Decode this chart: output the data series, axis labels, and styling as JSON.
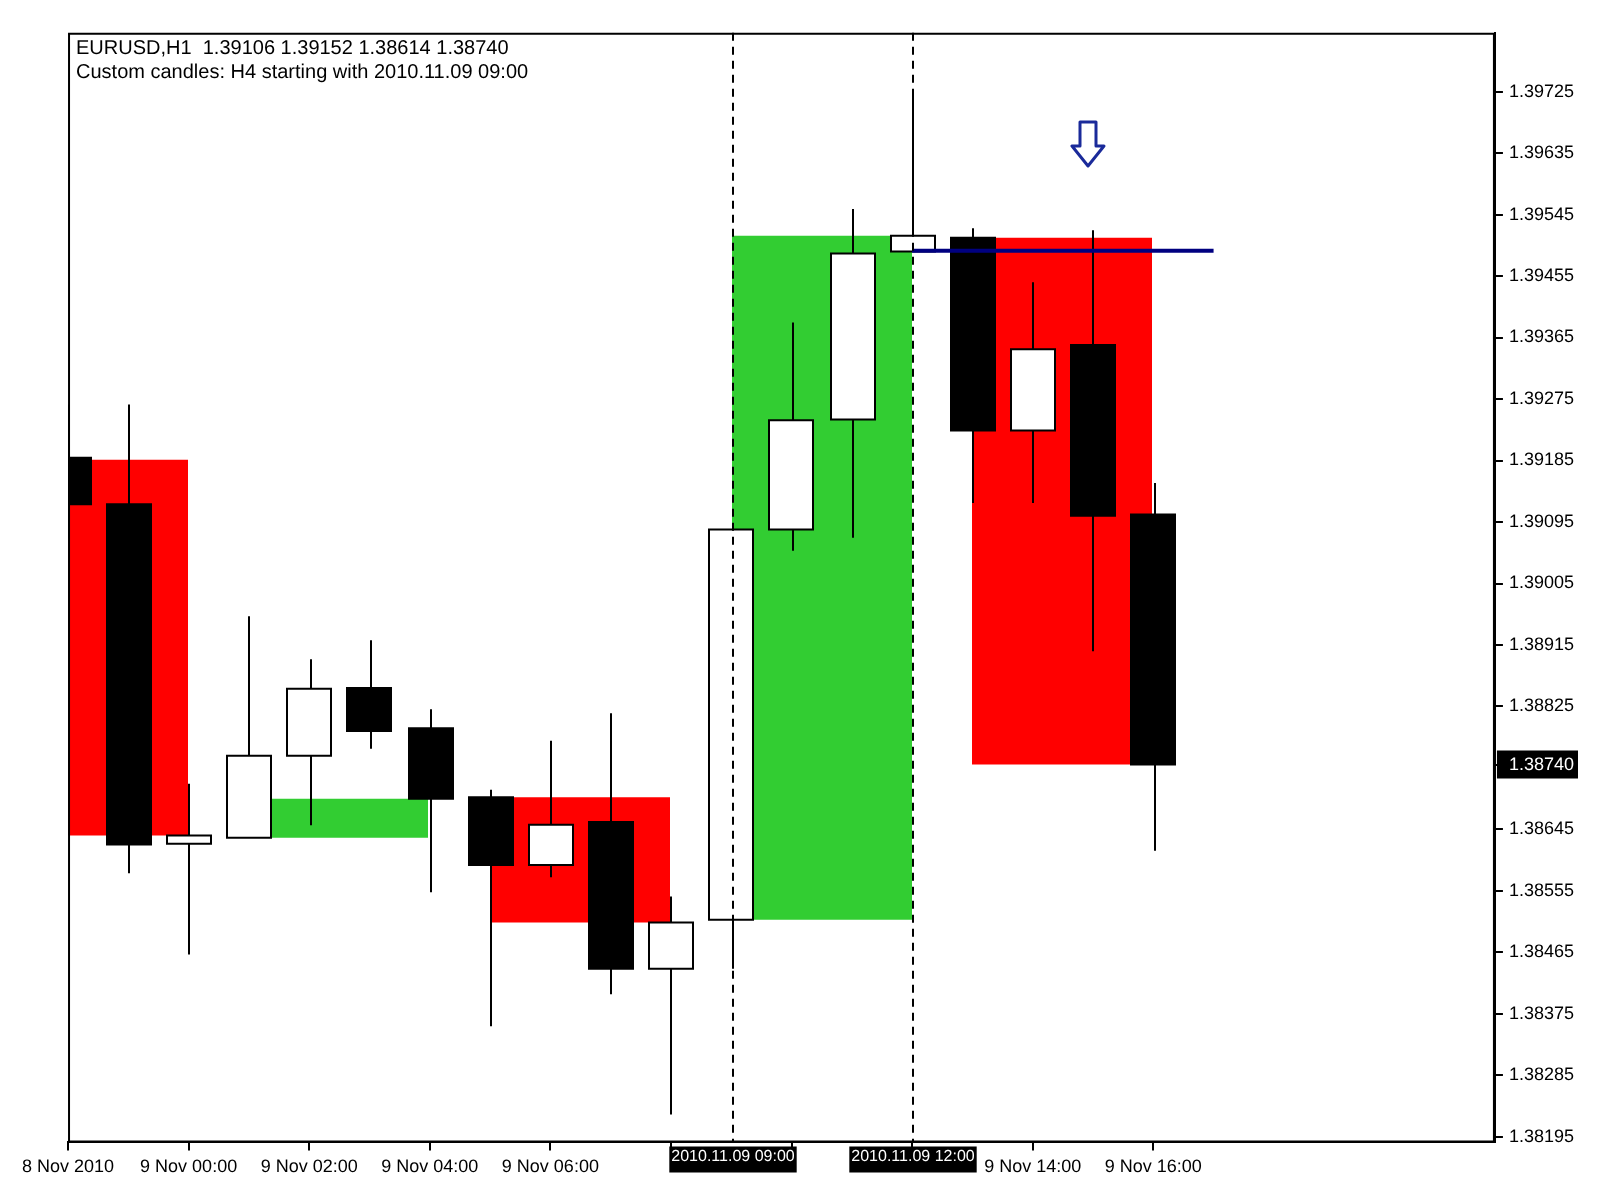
{
  "chart_data": {
    "type": "candlestick",
    "title": "EURUSD,H1  1.39106 1.39152 1.38614 1.38740",
    "subtitle": "Custom candles: H4 starting with 2010.11.09 09:00",
    "xlim": [
      "2010-11-08T22:00",
      "2010-11-09T21:40"
    ],
    "xticks": [
      {
        "value": "2010-11-08T22:00",
        "label": "8 Nov 2010"
      },
      {
        "value": "2010-11-09T00:00",
        "label": "9 Nov 00:00"
      },
      {
        "value": "2010-11-09T02:00",
        "label": "9 Nov 02:00"
      },
      {
        "value": "2010-11-09T04:00",
        "label": "9 Nov 04:00"
      },
      {
        "value": "2010-11-09T06:00",
        "label": "9 Nov 06:00"
      },
      {
        "value": "2010-11-09T08:00",
        "label": null
      },
      {
        "value": "2010-11-09T10:00",
        "label": null
      },
      {
        "value": "2010-11-09T12:00",
        "label": null
      },
      {
        "value": "2010-11-09T14:00",
        "label": "9 Nov 14:00"
      },
      {
        "value": "2010-11-09T16:00",
        "label": "9 Nov 16:00"
      }
    ],
    "ylim": [
      1.38187,
      1.39811
    ],
    "yticks": [
      1.39725,
      1.39635,
      1.39545,
      1.39455,
      1.39365,
      1.39275,
      1.39185,
      1.39095,
      1.39005,
      1.38915,
      1.38825,
      {
        "value": 1.3874,
        "label": "1.38740"
      },
      1.38645,
      1.38555,
      1.38465,
      1.38375,
      1.38285,
      1.38195
    ],
    "series": [
      {
        "type": "candlestick",
        "x": [
          "2010-11-08T22:30",
          "2010-11-09T02:30",
          "2010-11-09T06:30",
          "2010-11-09T10:30",
          "2010-11-09T14:30"
        ],
        "ohlc": [
          [
            1.39186,
            1.39186,
            1.38636,
            1.38636
          ],
          [
            1.38633,
            1.3869,
            1.38633,
            1.3869
          ],
          [
            1.38692,
            1.38692,
            1.38509,
            1.38509
          ],
          [
            1.38513,
            1.39514,
            1.38513,
            1.39514
          ],
          [
            1.39511,
            1.39511,
            1.3874,
            1.3874
          ]
        ],
        "colors": [
          "#ff0000",
          "#32cd32",
          "#ff0000",
          "#32cd32",
          "#ff0000"
        ]
      },
      {
        "type": "line",
        "color": "#000080",
        "x": [
          "2010-11-09T12:00",
          "2010-11-09T17:00"
        ],
        "values": [
          1.39492,
          1.39492
        ]
      },
      {
        "type": "candlestick",
        "x": [
          "2010-11-08T22:00",
          "2010-11-08T23:00",
          "2010-11-09T00:00",
          "2010-11-09T01:00",
          "2010-11-09T02:00",
          "2010-11-09T03:00",
          "2010-11-09T04:00",
          "2010-11-09T05:00",
          "2010-11-09T06:00",
          "2010-11-09T07:00",
          "2010-11-09T08:00",
          "2010-11-09T09:00",
          "2010-11-09T10:00",
          "2010-11-09T11:00",
          "2010-11-09T12:00",
          "2010-11-09T13:00",
          "2010-11-09T14:00",
          "2010-11-09T15:00",
          "2010-11-09T16:00"
        ],
        "ohlc": [
          [
            1.39189,
            1.39267,
            1.39071,
            1.39121
          ],
          [
            1.39121,
            1.39267,
            1.38581,
            1.38623
          ],
          [
            1.38624,
            1.38712,
            1.38462,
            1.38636
          ],
          [
            1.38633,
            1.38957,
            1.38633,
            1.38753
          ],
          [
            1.38753,
            1.38894,
            1.38651,
            1.38851
          ],
          [
            1.38852,
            1.38922,
            1.38763,
            1.38789
          ],
          [
            1.38793,
            1.38821,
            1.38553,
            1.3869
          ],
          [
            1.38692,
            1.38703,
            1.38357,
            1.38593
          ],
          [
            1.38593,
            1.38775,
            1.38575,
            1.38652
          ],
          [
            1.38656,
            1.38815,
            1.38404,
            1.38441
          ],
          [
            1.38441,
            1.38547,
            1.38228,
            1.38509
          ],
          [
            1.38513,
            1.39084,
            1.38441,
            1.39084
          ],
          [
            1.39084,
            1.39387,
            1.39053,
            1.39244
          ],
          [
            1.39245,
            1.39553,
            1.39072,
            1.39488
          ],
          [
            1.39491,
            1.39726,
            1.39491,
            1.39514
          ],
          [
            1.39511,
            1.39525,
            1.39123,
            1.39229
          ],
          [
            1.39229,
            1.39446,
            1.39123,
            1.39348
          ],
          [
            1.39354,
            1.39522,
            1.38906,
            1.39104
          ],
          [
            1.39106,
            1.39152,
            1.38614,
            1.3874
          ]
        ],
        "colors": [
          "#000000",
          "#000000",
          "#ffffff",
          "#ffffff",
          "#ffffff",
          "#000000",
          "#000000",
          "#000000",
          "#ffffff",
          "#000000",
          "#ffffff",
          "#ffffff",
          "#ffffff",
          "#ffffff",
          "#ffffff",
          "#000000",
          "#ffffff",
          "#000000",
          "#000000"
        ]
      }
    ],
    "ref_lines": [
      {
        "axis": "x",
        "value": "2010-11-09T09:00",
        "label": "2010.11.09 09:00",
        "color": "#000000",
        "line_style": "dashed"
      },
      {
        "axis": "x",
        "value": "2010-11-09T12:00",
        "label": "2010.11.09 12:00",
        "color": "#000000",
        "line_style": "dashed"
      }
    ]
  }
}
